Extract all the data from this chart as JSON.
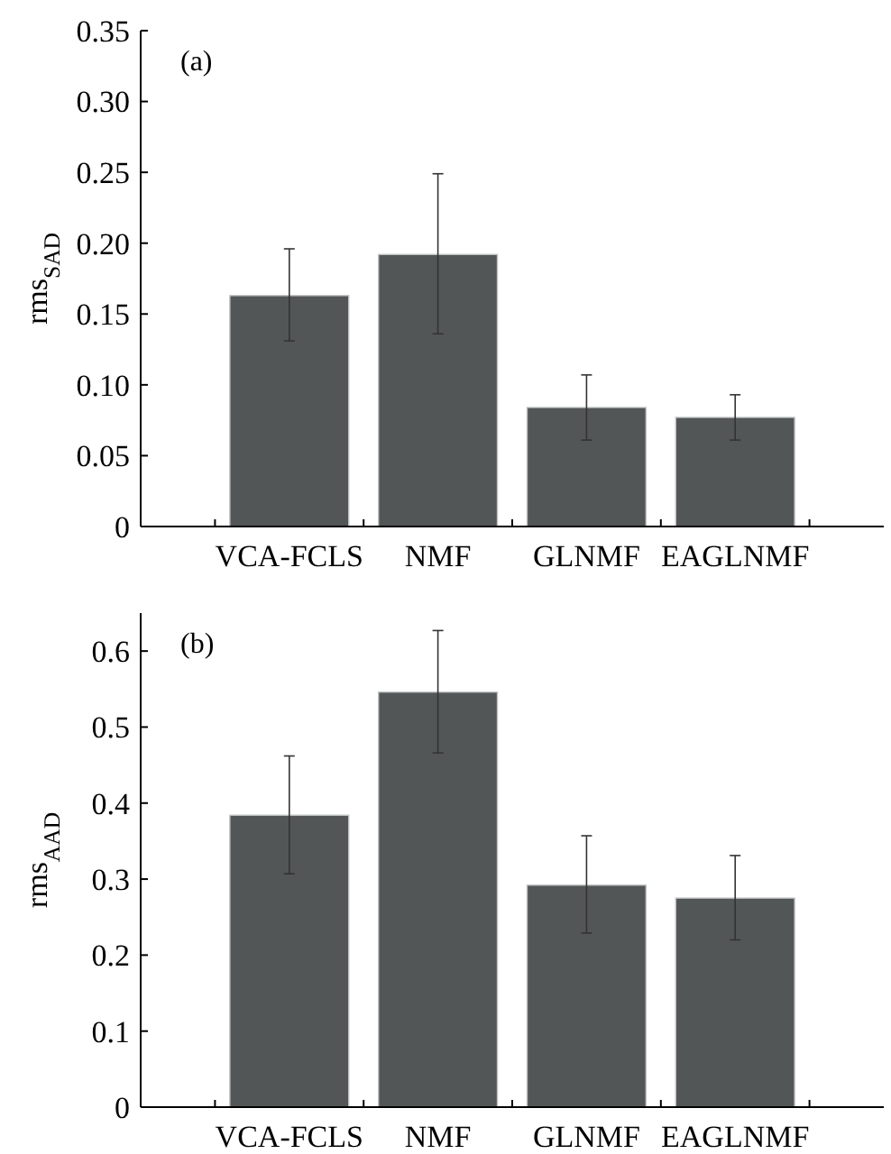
{
  "chart_data": [
    {
      "type": "bar",
      "annotations": [
        "(a)"
      ],
      "ylabel": "rms$_{SAD}$",
      "categories": [
        "VCA-FCLS",
        "NMF",
        "GLNMF",
        "EAGLNMF"
      ],
      "values": [
        0.163,
        0.192,
        0.084,
        0.077
      ],
      "errors": [
        [
          0.131,
          0.196
        ],
        [
          0.136,
          0.249
        ],
        [
          0.061,
          0.107
        ],
        [
          0.061,
          0.093
        ]
      ],
      "color": "#535657",
      "ylim": [
        0,
        0.35
      ],
      "yticks": [
        {
          "value": 0,
          "label": "0"
        },
        {
          "value": 0.05,
          "label": "0.05"
        },
        {
          "value": 0.1,
          "label": "0.10"
        },
        {
          "value": 0.15,
          "label": "0.15"
        },
        {
          "value": 0.2,
          "label": "0.20"
        },
        {
          "value": 0.25,
          "label": "0.25"
        },
        {
          "value": 0.3,
          "label": "0.30"
        },
        {
          "value": 0.35,
          "label": "0.35"
        }
      ]
    },
    {
      "type": "bar",
      "annotations": [
        "(b)"
      ],
      "ylabel": "rms$_{AAD}$",
      "categories": [
        "VCA-FCLS",
        "NMF",
        "GLNMF",
        "EAGLNMF"
      ],
      "values": [
        0.384,
        0.546,
        0.292,
        0.275
      ],
      "errors": [
        [
          0.307,
          0.462
        ],
        [
          0.466,
          0.627
        ],
        [
          0.229,
          0.357
        ],
        [
          0.22,
          0.331
        ]
      ],
      "color": "#535657",
      "ylim": [
        0,
        0.65
      ],
      "yticks": [
        0,
        0.1,
        0.2,
        0.3,
        0.4,
        0.5,
        0.6
      ]
    }
  ]
}
